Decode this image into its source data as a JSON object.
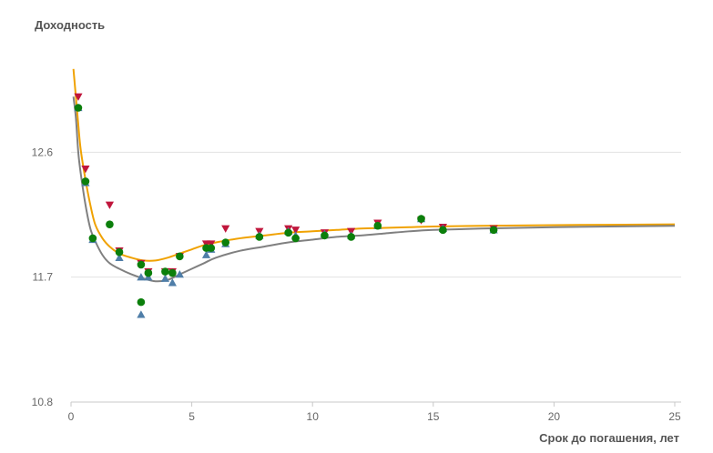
{
  "chart_data": {
    "type": "scatter",
    "title": "",
    "ylabel": "Доходность",
    "xlabel": "Срок до погашения, лет",
    "xlim": [
      0,
      25
    ],
    "ylim": [
      10.8,
      13.5
    ],
    "xticks": [
      0,
      5,
      10,
      15,
      20,
      25
    ],
    "yticks": [
      10.8,
      11.7,
      12.6
    ],
    "grid": "horizontal",
    "legend": "none",
    "lines": [
      {
        "color": "#f0a202",
        "x": [
          0.1,
          0.2,
          0.3,
          0.4,
          0.6,
          0.8,
          1.0,
          1.3,
          1.6,
          2.0,
          2.5,
          3.0,
          3.5,
          4.0,
          4.5,
          5.0,
          5.5,
          6.0,
          7.0,
          8.0,
          9.0,
          10.0,
          11.0,
          12.0,
          13.0,
          14.0,
          15.0,
          17.0,
          20.0,
          25.0
        ],
        "y": [
          13.2,
          13.0,
          12.8,
          12.62,
          12.4,
          12.22,
          12.08,
          11.98,
          11.92,
          11.87,
          11.84,
          11.82,
          11.82,
          11.84,
          11.87,
          11.9,
          11.93,
          11.95,
          11.98,
          12.0,
          12.02,
          12.03,
          12.04,
          12.05,
          12.055,
          12.06,
          12.065,
          12.07,
          12.075,
          12.08
        ]
      },
      {
        "color": "#808080",
        "x": [
          0.1,
          0.2,
          0.3,
          0.4,
          0.6,
          0.8,
          1.0,
          1.3,
          1.6,
          2.0,
          2.5,
          3.0,
          3.5,
          4.0,
          4.5,
          5.0,
          5.5,
          6.0,
          7.0,
          8.0,
          9.0,
          10.0,
          11.0,
          12.0,
          13.0,
          14.0,
          15.0,
          17.0,
          20.0,
          25.0
        ],
        "y": [
          13.0,
          12.85,
          12.6,
          12.45,
          12.22,
          12.05,
          11.96,
          11.86,
          11.8,
          11.76,
          11.72,
          11.69,
          11.67,
          11.68,
          11.72,
          11.76,
          11.8,
          11.84,
          11.89,
          11.92,
          11.95,
          11.97,
          11.99,
          12.0,
          12.015,
          12.03,
          12.04,
          12.05,
          12.06,
          12.07
        ]
      }
    ],
    "series": [
      {
        "marker": "triangle-down",
        "color": "#c0163c",
        "points": [
          [
            0.3,
            13.0
          ],
          [
            0.6,
            12.48
          ],
          [
            1.6,
            12.22
          ],
          [
            2.0,
            11.89
          ],
          [
            2.9,
            11.8
          ],
          [
            3.2,
            11.74
          ],
          [
            3.9,
            11.74
          ],
          [
            4.2,
            11.74
          ],
          [
            4.5,
            11.85
          ],
          [
            5.6,
            11.94
          ],
          [
            5.8,
            11.94
          ],
          [
            6.4,
            12.05
          ],
          [
            7.8,
            12.03
          ],
          [
            9.0,
            12.05
          ],
          [
            9.3,
            12.04
          ],
          [
            10.5,
            12.02
          ],
          [
            11.6,
            12.03
          ],
          [
            12.7,
            12.09
          ],
          [
            14.5,
            12.11
          ],
          [
            15.4,
            12.06
          ],
          [
            17.5,
            12.05
          ]
        ]
      },
      {
        "marker": "triangle-up",
        "color": "#4f7ea8",
        "points": [
          [
            0.3,
            12.92
          ],
          [
            0.6,
            12.38
          ],
          [
            0.9,
            11.97
          ],
          [
            2.0,
            11.84
          ],
          [
            2.9,
            11.43
          ],
          [
            2.9,
            11.7
          ],
          [
            3.2,
            11.7
          ],
          [
            3.9,
            11.69
          ],
          [
            4.2,
            11.66
          ],
          [
            4.5,
            11.72
          ],
          [
            5.6,
            11.86
          ],
          [
            5.8,
            11.9
          ],
          [
            6.4,
            11.94
          ],
          [
            7.8,
            12.0
          ],
          [
            9.0,
            12.03
          ],
          [
            9.3,
            12.0
          ],
          [
            10.5,
            12.01
          ],
          [
            11.6,
            12.0
          ],
          [
            12.7,
            12.07
          ],
          [
            14.5,
            12.12
          ],
          [
            15.4,
            12.05
          ],
          [
            17.5,
            12.04
          ]
        ]
      },
      {
        "marker": "circle",
        "color": "#0b7f0b",
        "points": [
          [
            0.3,
            12.92
          ],
          [
            0.6,
            12.39
          ],
          [
            0.9,
            11.98
          ],
          [
            1.6,
            12.08
          ],
          [
            2.0,
            11.88
          ],
          [
            2.9,
            11.79
          ],
          [
            2.9,
            11.52
          ],
          [
            3.2,
            11.73
          ],
          [
            3.9,
            11.74
          ],
          [
            4.2,
            11.73
          ],
          [
            4.5,
            11.85
          ],
          [
            5.6,
            11.91
          ],
          [
            5.8,
            11.91
          ],
          [
            6.4,
            11.95
          ],
          [
            7.8,
            11.99
          ],
          [
            9.0,
            12.02
          ],
          [
            9.3,
            11.98
          ],
          [
            10.5,
            12.0
          ],
          [
            11.6,
            11.99
          ],
          [
            12.7,
            12.07
          ],
          [
            14.5,
            12.12
          ],
          [
            15.4,
            12.04
          ],
          [
            17.5,
            12.04
          ]
        ]
      }
    ]
  }
}
